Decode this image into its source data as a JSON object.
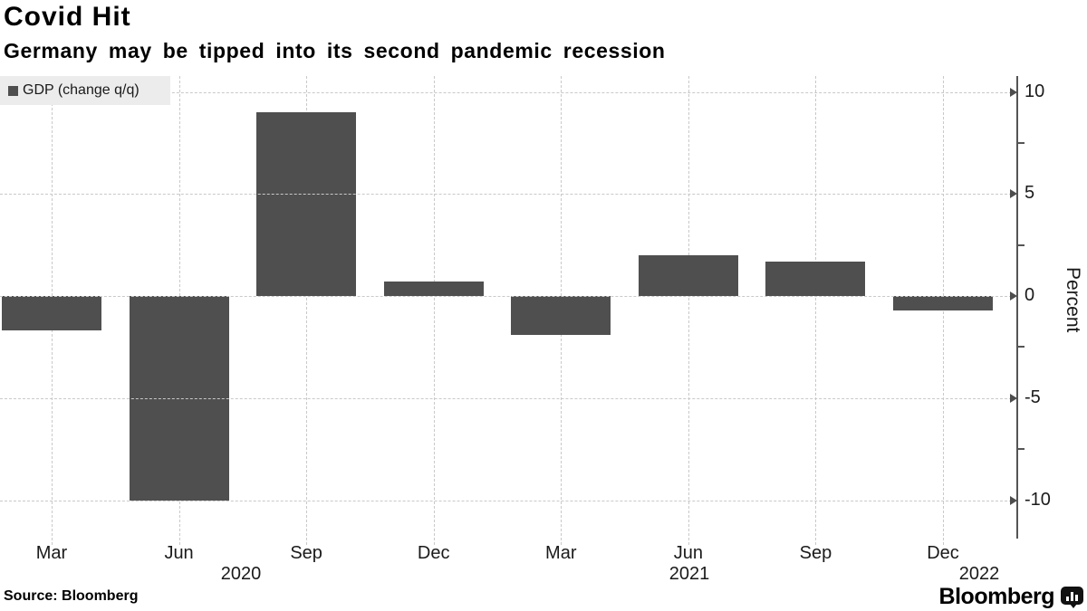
{
  "header": {
    "title": "Covid Hit",
    "subtitle": "Germany may be tipped into its second pandemic recession"
  },
  "chart_data": {
    "type": "bar",
    "title": "Covid Hit",
    "subtitle": "Germany may be tipped into its second pandemic recession",
    "legend": "GDP (change q/q)",
    "legend_position": "top-left",
    "categories": [
      "Mar 2020",
      "Jun 2020",
      "Sep 2020",
      "Dec 2020",
      "Mar 2021",
      "Jun 2021",
      "Sep 2021",
      "Dec 2021"
    ],
    "values": [
      -1.7,
      -10.0,
      9.0,
      0.7,
      -1.9,
      2.0,
      1.7,
      -0.7
    ],
    "x_tick_labels": [
      "Mar",
      "Jun",
      "Sep",
      "Dec",
      "Mar",
      "Jun",
      "Sep",
      "Dec"
    ],
    "year_labels": [
      "2020",
      "2021",
      "2022"
    ],
    "ylabel": "Percent",
    "y_axis_side": "right",
    "ylim": [
      -11.9,
      10.8
    ],
    "yticks_major": [
      10,
      5,
      0,
      -5,
      -10
    ],
    "yticks_minor": [
      7.5,
      2.5,
      -2.5,
      -7.5
    ],
    "grid": "dashed",
    "colors": {
      "bar": "#4f4f4f",
      "grid": "#c9c9c9",
      "axis": "#555555",
      "text": "#1a1a1a",
      "legend_bg": "#ececec"
    }
  },
  "footer": {
    "source": "Source: Bloomberg",
    "brand": "Bloomberg",
    "brand_icon": "bloomberg-terminal-icon"
  }
}
